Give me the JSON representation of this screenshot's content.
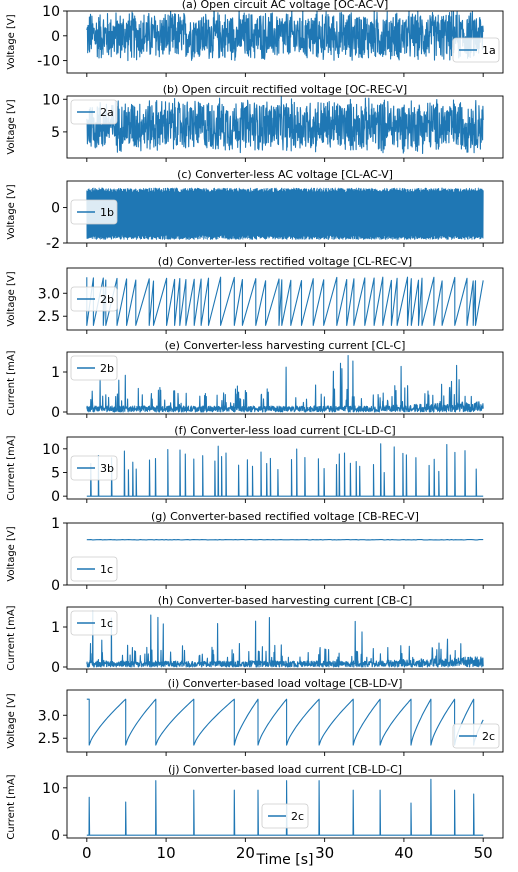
{
  "figure": {
    "xlabel": "Time [s]",
    "xticks": [
      0,
      10,
      20,
      30,
      40,
      50
    ],
    "xlim": [
      -2.5,
      52.5
    ]
  },
  "colors": {
    "series": "#1f77b4",
    "axes": "#000000"
  },
  "chart_data": [
    {
      "panel": "a",
      "type": "line",
      "title": "(a) Open circuit AC voltage [OC-AC-V]",
      "ylabel": "Voltage [V]",
      "ylim": [
        -15,
        10
      ],
      "yticks": [
        10,
        0,
        -10
      ],
      "legend": {
        "label": "1a",
        "loc": "right"
      },
      "pattern": "noise",
      "series": [
        {
          "name": "1a",
          "center": 0,
          "amplitude": 11,
          "x_range": [
            0,
            50
          ]
        }
      ]
    },
    {
      "panel": "b",
      "type": "line",
      "title": "(b) Open circuit rectified voltage [OC-REC-V]",
      "ylabel": "Voltage [V]",
      "ylim": [
        1,
        10.5
      ],
      "yticks": [
        10,
        5
      ],
      "legend": {
        "label": "2a",
        "loc": "upper left"
      },
      "pattern": "noise",
      "series": [
        {
          "name": "2a",
          "center": 6,
          "amplitude": 4.5,
          "x_range": [
            0,
            50
          ]
        }
      ]
    },
    {
      "panel": "c",
      "type": "line",
      "title": "(c) Converter-less AC voltage [CL-AC-V]",
      "ylabel": "Voltage [V]",
      "ylim": [
        -2,
        1.5
      ],
      "yticks": [
        0,
        -2
      ],
      "legend": {
        "label": "1b",
        "loc": "left"
      },
      "pattern": "dense",
      "series": [
        {
          "name": "1b",
          "min": -1.8,
          "max": 1.1,
          "x_range": [
            0,
            50
          ]
        }
      ]
    },
    {
      "panel": "d",
      "type": "line",
      "title": "(d) Converter-less rectified voltage [CL-REC-V]",
      "ylabel": "Voltage [V]",
      "ylim": [
        2.2,
        3.55
      ],
      "yticks": [
        3.0,
        2.5
      ],
      "legend": {
        "label": "2b",
        "loc": "left"
      },
      "pattern": "sawtooth",
      "series": [
        {
          "name": "2b",
          "min": 2.3,
          "max": 3.35,
          "x_range": [
            0,
            50
          ]
        }
      ]
    },
    {
      "panel": "e",
      "type": "line",
      "title": "(e) Converter-less harvesting current [CL-C]",
      "ylabel": "Current [mA]",
      "ylim": [
        -0.05,
        1.5
      ],
      "yticks": [
        1,
        0
      ],
      "legend": {
        "label": "2b",
        "loc": "upper left"
      },
      "pattern": "spiky",
      "series": [
        {
          "name": "2b",
          "baseline": 0.15,
          "peak": 1.42,
          "x_range": [
            0,
            50
          ]
        }
      ]
    },
    {
      "panel": "f",
      "type": "line",
      "title": "(f) Converter-less load current [CL-LD-C]",
      "ylabel": "Current [mA]",
      "ylim": [
        -0.6,
        12.5
      ],
      "yticks": [
        10,
        5,
        0
      ],
      "legend": {
        "label": "3b",
        "loc": "left"
      },
      "pattern": "pulses",
      "series": [
        {
          "name": "3b",
          "baseline": 0,
          "peak": 11.2,
          "x_range": [
            0,
            50
          ]
        }
      ]
    },
    {
      "panel": "g",
      "type": "line",
      "title": "(g) Converter-based rectified voltage [CB-REC-V]",
      "ylabel": "Voltage [V]",
      "ylim": [
        0,
        1
      ],
      "yticks": [
        1,
        0
      ],
      "legend": {
        "label": "1c",
        "loc": "lower left"
      },
      "pattern": "flat",
      "series": [
        {
          "name": "1c",
          "value": 0.73,
          "x_range": [
            0,
            50
          ]
        }
      ]
    },
    {
      "panel": "h",
      "type": "line",
      "title": "(h) Converter-based harvesting current [CB-C]",
      "ylabel": "Current [mA]",
      "ylim": [
        -0.05,
        1.5
      ],
      "yticks": [
        1,
        0
      ],
      "legend": {
        "label": "1c",
        "loc": "upper left"
      },
      "pattern": "spiky",
      "series": [
        {
          "name": "1c",
          "baseline": 0.15,
          "peak": 1.42,
          "x_range": [
            0,
            50
          ]
        }
      ]
    },
    {
      "panel": "i",
      "type": "line",
      "title": "(i) Converter-based load voltage [CB-LD-V]",
      "ylabel": "Voltage [V]",
      "ylim": [
        2.2,
        3.55
      ],
      "yticks": [
        3.0,
        2.5
      ],
      "legend": {
        "label": "2c",
        "loc": "lower right"
      },
      "pattern": "sawtooth_slow",
      "series": [
        {
          "name": "2c",
          "min": 2.35,
          "max": 3.35,
          "x_range": [
            0,
            50
          ],
          "resets": [
            0.3,
            4.9,
            8.7,
            13.5,
            18.6,
            21.6,
            25.2,
            29.3,
            33.6,
            37.0,
            40.9,
            43.4,
            46.4,
            48.8
          ]
        }
      ]
    },
    {
      "panel": "j",
      "type": "line",
      "title": "(j) Converter-based load current [CB-LD-C]",
      "ylabel": "Current [mA]",
      "ylim": [
        -0.6,
        12.5
      ],
      "yticks": [
        10,
        0
      ],
      "legend": {
        "label": "2c",
        "loc": "lower center"
      },
      "pattern": "pulses",
      "series": [
        {
          "name": "2c",
          "baseline": 0,
          "x_range": [
            0,
            50
          ],
          "pulses": [
            [
              0.3,
              8.0
            ],
            [
              4.9,
              7.0
            ],
            [
              8.7,
              11.5
            ],
            [
              13.5,
              9.5
            ],
            [
              18.6,
              9.5
            ],
            [
              21.6,
              9.5
            ],
            [
              25.2,
              11.5
            ],
            [
              29.3,
              11.5
            ],
            [
              33.6,
              9.5
            ],
            [
              37.0,
              9.5
            ],
            [
              40.9,
              6.8
            ],
            [
              43.4,
              11.8
            ],
            [
              46.4,
              9.5
            ],
            [
              48.8,
              8.7
            ]
          ]
        }
      ]
    }
  ]
}
